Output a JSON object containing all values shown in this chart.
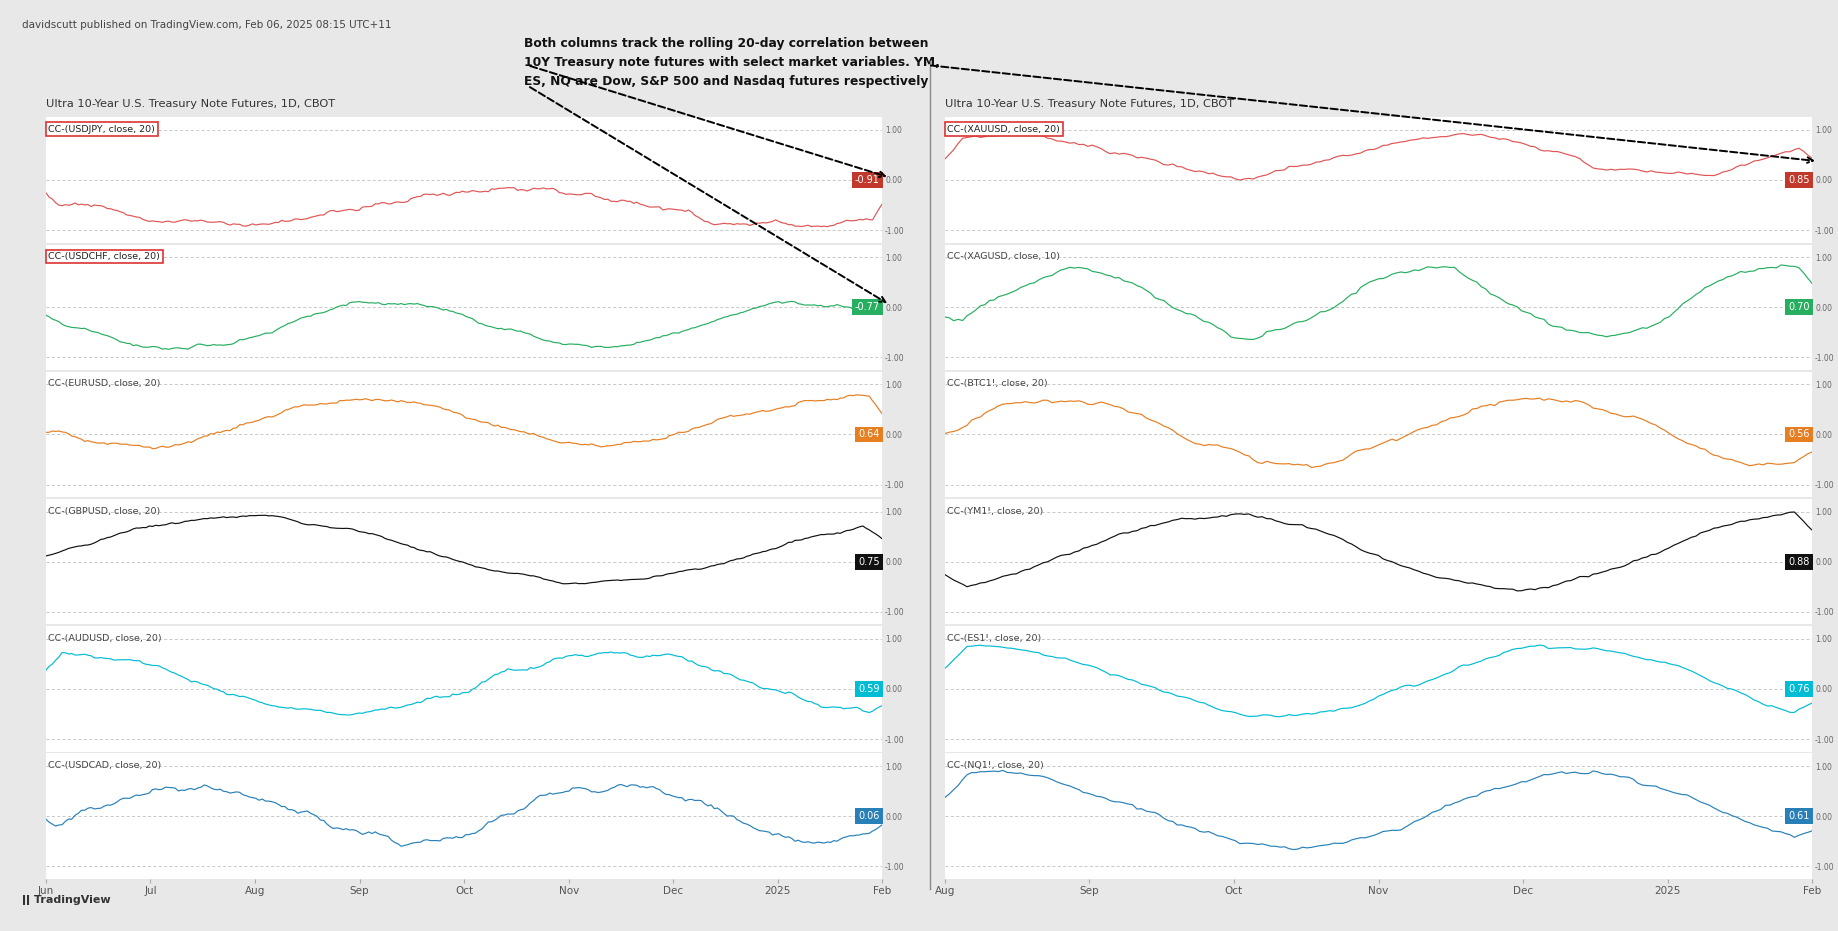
{
  "title_left": "Ultra 10-Year U.S. Treasury Note Futures, 1D, CBOT",
  "title_right": "Ultra 10-Year U.S. Treasury Note Futures, 1D, CBOT",
  "watermark": "davidscutt published on TradingView.com, Feb 06, 2025 08:15 UTC+11",
  "annotation": "Both columns track the rolling 20-day correlation between\n10Y Treasury note futures with select market variables. YM,\nES, NQ are Dow, S&P 500 and Nasdaq futures respectively",
  "bg_color": "#e8e8e8",
  "panel_bg": "#ffffff",
  "grid_color": "#bbbbbb",
  "left_series": [
    {
      "label": "CC-(USDJPY, close, 20)",
      "color": "#e05555",
      "value": -0.91,
      "value_color": "#c0392b",
      "boxed": true
    },
    {
      "label": "CC-(USDCHF, close, 20)",
      "color": "#27ae60",
      "value": -0.77,
      "value_color": "#27ae60",
      "boxed": true
    },
    {
      "label": "CC-(EURUSD, close, 20)",
      "color": "#e67e22",
      "value": 0.64,
      "value_color": "#e67e22",
      "boxed": false
    },
    {
      "label": "CC-(GBPUSD, close, 20)",
      "color": "#111111",
      "value": 0.75,
      "value_color": "#111111",
      "boxed": false
    },
    {
      "label": "CC-(AUDUSD, close, 20)",
      "color": "#00bcd4",
      "value": 0.59,
      "value_color": "#00bcd4",
      "boxed": false
    },
    {
      "label": "CC-(USDCAD, close, 20)",
      "color": "#2980b9",
      "value": 0.06,
      "value_color": "#2980b9",
      "boxed": false
    }
  ],
  "right_series": [
    {
      "label": "CC-(XAUUSD, close, 20)",
      "color": "#e05555",
      "value": 0.85,
      "value_color": "#c0392b",
      "boxed": true
    },
    {
      "label": "CC-(XAGUSD, close, 10)",
      "color": "#27ae60",
      "value": 0.7,
      "value_color": "#27ae60",
      "boxed": false
    },
    {
      "label": "CC-(BTC1!, close, 20)",
      "color": "#e67e22",
      "value": 0.56,
      "value_color": "#e67e22",
      "boxed": false
    },
    {
      "label": "CC-(YM1!, close, 20)",
      "color": "#111111",
      "value": 0.88,
      "value_color": "#111111",
      "boxed": false
    },
    {
      "label": "CC-(ES1!, close, 20)",
      "color": "#00bcd4",
      "value": 0.76,
      "value_color": "#00bcd4",
      "boxed": false
    },
    {
      "label": "CC-(NQ1!, close, 20)",
      "color": "#2980b9",
      "value": 0.61,
      "value_color": "#2980b9",
      "boxed": false
    }
  ],
  "left_xticks": [
    "Jun",
    "Jul",
    "Aug",
    "Sep",
    "Oct",
    "Nov",
    "Dec",
    "2025",
    "Feb"
  ],
  "right_xticks": [
    "Aug",
    "Sep",
    "Oct",
    "Nov",
    "Dec",
    "2025",
    "Feb"
  ]
}
